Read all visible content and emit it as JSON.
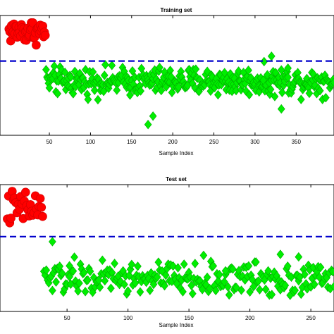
{
  "chart_data": [
    {
      "type": "scatter",
      "title": "Training set",
      "xlabel": "Sample Index",
      "ylabel": "",
      "xlim": [
        -10,
        396
      ],
      "ylim": [
        0,
        10
      ],
      "xticks": [
        50,
        100,
        150,
        200,
        250,
        300,
        350
      ],
      "threshold": 6.2,
      "threshold_color": "#0000cc",
      "series": [
        {
          "marker": "circle",
          "color": "#ff0000",
          "x_range": [
            1,
            45
          ],
          "y_range": [
            7.2,
            10.2
          ]
        },
        {
          "marker": "diamond",
          "color": "#00ee00",
          "x_range": [
            46,
            396
          ],
          "y_range": [
            2.8,
            6.2
          ]
        }
      ],
      "outliers": [
        [
          170,
          0.9
        ],
        [
          176,
          1.6
        ],
        [
          320,
          6.6
        ],
        [
          310,
          4.6
        ],
        [
          332,
          2.2
        ],
        [
          340,
          5.6
        ]
      ]
    },
    {
      "type": "scatter",
      "title": "Test set",
      "xlabel": "Sample Index",
      "ylabel": "",
      "xlim": [
        -5,
        269
      ],
      "ylim": [
        0,
        10
      ],
      "xticks": [
        50,
        100,
        150,
        200,
        250
      ],
      "threshold": 5.9,
      "threshold_color": "#0000cc",
      "series": [
        {
          "marker": "circle",
          "color": "#ff0000",
          "x_range": [
            1,
            30
          ],
          "y_range": [
            6.0,
            10.2
          ]
        },
        {
          "marker": "diamond",
          "color": "#00ee00",
          "x_range": [
            31,
            269
          ],
          "y_range": [
            0.6,
            4.6
          ]
        }
      ],
      "outliers": [
        [
          38,
          5.5
        ],
        [
          52,
          3.6
        ],
        [
          180,
          3.2
        ],
        [
          225,
          4.5
        ],
        [
          240,
          4.3
        ]
      ]
    }
  ]
}
